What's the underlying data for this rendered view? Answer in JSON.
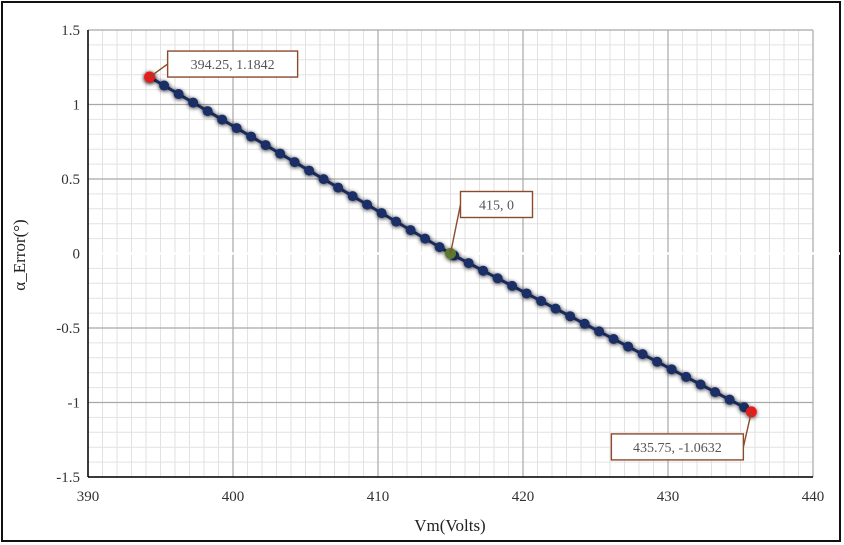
{
  "chart_data": {
    "type": "scatter",
    "xlabel": "Vm(Volts)",
    "ylabel": "α_Error(°)",
    "xlim": [
      390,
      440
    ],
    "ylim": [
      -1.5,
      1.5
    ],
    "x_ticks": [
      390,
      400,
      410,
      420,
      430,
      440
    ],
    "y_ticks": [
      -1.5,
      -1,
      -0.5,
      0,
      0.5,
      1,
      1.5
    ],
    "x_tick_labels": [
      "390",
      "400",
      "410",
      "420",
      "430",
      "440"
    ],
    "y_tick_labels": [
      "-1.5",
      "-1",
      "-0.5",
      "0",
      "0.5",
      "1",
      "1.5"
    ],
    "x_minor_step": 1,
    "y_minor_step": 0.1,
    "grid": true,
    "series": [
      {
        "color": "#1a2f66",
        "marker": "circle",
        "line": true,
        "x": [
          394.25,
          395.25,
          396.25,
          397.25,
          398.25,
          399.25,
          400.25,
          401.25,
          402.25,
          403.25,
          404.25,
          405.25,
          406.25,
          407.25,
          408.25,
          409.25,
          410.25,
          411.25,
          412.25,
          413.25,
          414.25,
          415.25,
          416.25,
          417.25,
          418.25,
          419.25,
          420.25,
          421.25,
          422.25,
          423.25,
          424.25,
          425.25,
          426.25,
          427.25,
          428.25,
          429.25,
          430.25,
          431.25,
          432.25,
          433.25,
          434.25,
          435.25
        ],
        "y": [
          1.1842,
          1.1271,
          1.0701,
          1.013,
          0.9559,
          0.8988,
          0.8418,
          0.7847,
          0.7276,
          0.6706,
          0.6135,
          0.5564,
          0.4993,
          0.4423,
          0.3852,
          0.3281,
          0.271,
          0.214,
          0.1569,
          0.0998,
          0.0428,
          -0.0135,
          -0.0644,
          -0.1154,
          -0.1663,
          -0.2172,
          -0.2681,
          -0.3191,
          -0.37,
          -0.4209,
          -0.4718,
          -0.5228,
          -0.5737,
          -0.6246,
          -0.6755,
          -0.7265,
          -0.7774,
          -0.8283,
          -0.8793,
          -0.9302,
          -0.9811,
          -1.032
        ]
      }
    ],
    "highlights": [
      {
        "x": 394.25,
        "y": 1.1842,
        "color": "#e31b1b",
        "label": "394.25, 1.1842"
      },
      {
        "x": 415,
        "y": 0,
        "color": "#5a7a2e",
        "label": "415, 0"
      },
      {
        "x": 435.75,
        "y": -1.0632,
        "color": "#e31b1b",
        "label": "435.75, -1.0632"
      }
    ],
    "colors": {
      "callout_border": "#8b4a2b",
      "major_grid": "#a8a8a8",
      "minor_grid": "#e2e2e2",
      "frame": "#111111"
    }
  }
}
